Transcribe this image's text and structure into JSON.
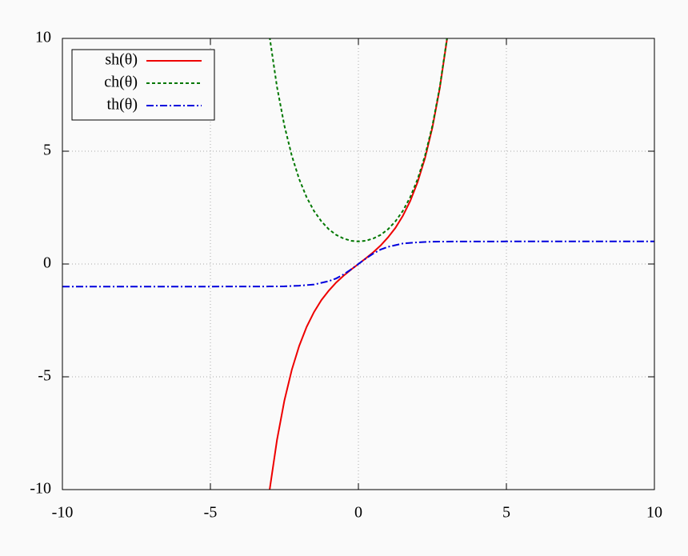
{
  "chart_data": {
    "type": "line",
    "xlim": [
      -10,
      10
    ],
    "ylim": [
      -10,
      10
    ],
    "xticks": [
      -10,
      -5,
      0,
      5,
      10
    ],
    "yticks": [
      -10,
      -5,
      0,
      5,
      10
    ],
    "grid": true,
    "legend": "upper left",
    "series": [
      {
        "name": "sh(θ)",
        "color": "#ee0000",
        "x": [
          -3,
          -2.75,
          -2.5,
          -2.25,
          -2,
          -1.75,
          -1.5,
          -1.25,
          -1,
          -0.75,
          -0.5,
          -0.25,
          0,
          0.25,
          0.5,
          0.75,
          1,
          1.25,
          1.5,
          1.75,
          2,
          2.25,
          2.5,
          2.75,
          3
        ],
        "values": [
          -10.02,
          -7.8,
          -6.05,
          -4.69,
          -3.63,
          -2.79,
          -2.13,
          -1.6,
          -1.18,
          -0.82,
          -0.52,
          -0.25,
          0,
          0.25,
          0.52,
          0.82,
          1.18,
          1.6,
          2.13,
          2.79,
          3.63,
          4.69,
          6.05,
          7.8,
          10.02
        ]
      },
      {
        "name": "ch(θ)",
        "color": "#007700",
        "x": [
          -3,
          -2.75,
          -2.5,
          -2.25,
          -2,
          -1.75,
          -1.5,
          -1.25,
          -1,
          -0.75,
          -0.5,
          -0.25,
          0,
          0.25,
          0.5,
          0.75,
          1,
          1.25,
          1.5,
          1.75,
          2,
          2.25,
          2.5,
          2.75,
          3
        ],
        "values": [
          10.07,
          7.85,
          6.13,
          4.8,
          3.76,
          2.96,
          2.35,
          1.89,
          1.54,
          1.29,
          1.13,
          1.03,
          1,
          1.03,
          1.13,
          1.29,
          1.54,
          1.89,
          2.35,
          2.96,
          3.76,
          4.8,
          6.13,
          7.85,
          10.07
        ]
      },
      {
        "name": "th(θ)",
        "color": "#0000dd",
        "x": [
          -10,
          -5,
          -3,
          -2.5,
          -2,
          -1.5,
          -1,
          -0.75,
          -0.5,
          -0.25,
          0,
          0.25,
          0.5,
          0.75,
          1,
          1.5,
          2,
          2.5,
          3,
          5,
          10
        ],
        "values": [
          -1,
          -1,
          -0.995,
          -0.99,
          -0.96,
          -0.91,
          -0.76,
          -0.64,
          -0.46,
          -0.24,
          0,
          0.24,
          0.46,
          0.64,
          0.76,
          0.91,
          0.96,
          0.99,
          0.995,
          1,
          1
        ]
      }
    ]
  }
}
